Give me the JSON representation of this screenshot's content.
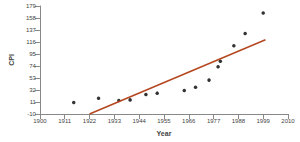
{
  "chart_data": {
    "type": "scatter",
    "x_label": "Year",
    "y_label": "CPI",
    "series": [
      {
        "type": "scatter",
        "color": "#000000",
        "marker": "circle",
        "x": [
          1915,
          1926,
          1935,
          1940,
          1947,
          1952,
          1964,
          1969,
          1975,
          1979,
          1980,
          1986,
          1991,
          1999
        ],
        "values": [
          10.1,
          17.7,
          13.7,
          14.7,
          24.1,
          26.5,
          31.0,
          36.7,
          49.3,
          72.6,
          82.4,
          109.6,
          130.7,
          166.6
        ]
      },
      {
        "type": "line",
        "color": "#b5471f",
        "line_style": "solid",
        "x": [
          1922,
          2000
        ],
        "values": [
          -10,
          120
        ]
      }
    ],
    "xlim": [
      1900,
      2010
    ],
    "xticks": [
      1900,
      1911,
      1922,
      1933,
      1944,
      1955,
      1966,
      1977,
      1988,
      1999,
      2010
    ],
    "ylim": [
      -10,
      179
    ],
    "yticks": [
      -10,
      11,
      32,
      53,
      74,
      95,
      116,
      137,
      158,
      179
    ],
    "grid": false
  }
}
